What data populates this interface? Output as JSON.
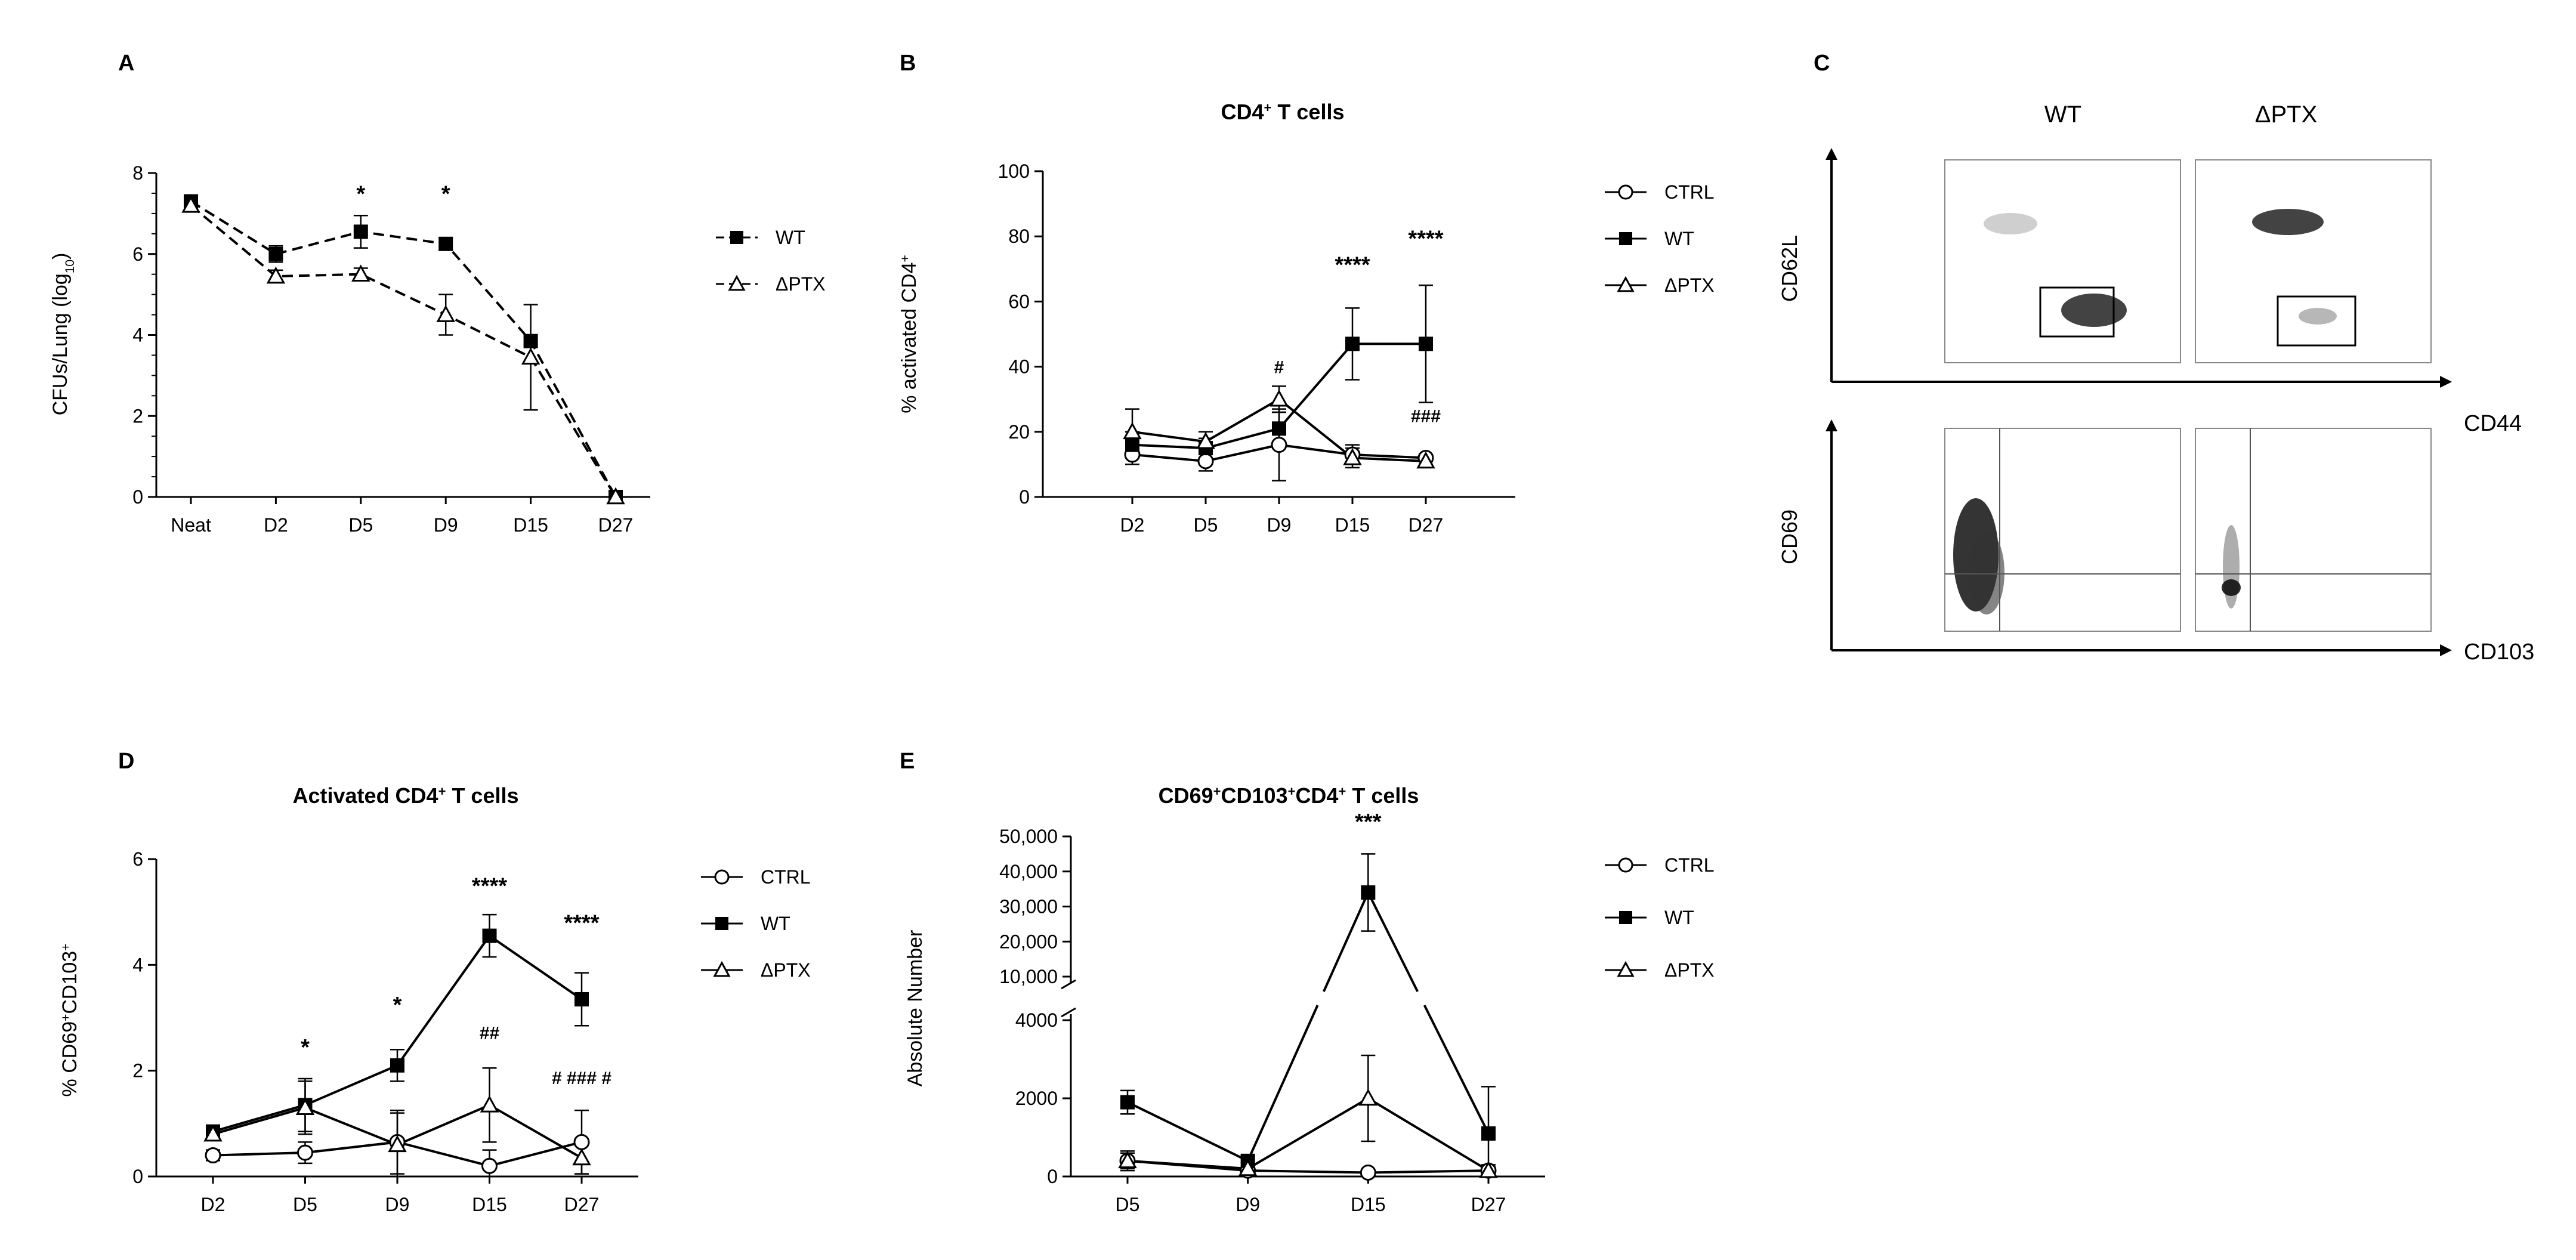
{
  "chart_data": [
    {
      "panel": "A",
      "type": "line",
      "title": "",
      "xlabel": "",
      "ylabel": "CFUs/Lung (log",
      "ylabel_sub": "10",
      "ylabel_end": ")",
      "ylim": [
        0,
        8
      ],
      "yticks": [
        0,
        2,
        4,
        6,
        8
      ],
      "categories": [
        "Neat",
        "D2",
        "D5",
        "D9",
        "D15",
        "D27"
      ],
      "series": [
        {
          "name": "WT",
          "marker": "square-filled",
          "dash": true,
          "values": [
            7.3,
            6.0,
            6.55,
            6.25,
            3.85,
            0.0
          ],
          "err": [
            0.1,
            0.2,
            0.4,
            0.15,
            0.1,
            0
          ]
        },
        {
          "name": "ΔPTX",
          "marker": "triangle-open",
          "dash": true,
          "values": [
            7.2,
            5.45,
            5.5,
            4.5,
            3.45,
            0.0
          ],
          "err": [
            0.1,
            0.15,
            0.15,
            0.5,
            1.3,
            0
          ]
        }
      ],
      "annotations": [
        {
          "category": "D5",
          "y": 7.3,
          "text": "*"
        },
        {
          "category": "D9",
          "y": 7.3,
          "text": "*"
        }
      ]
    },
    {
      "panel": "B",
      "type": "line",
      "title": "CD4",
      "title_sup": "+",
      "title_end": " T cells",
      "ylabel": "% activated CD4",
      "ylabel_sup": "+",
      "ylim": [
        0,
        100
      ],
      "yticks": [
        0,
        20,
        40,
        60,
        80,
        100
      ],
      "categories": [
        "D2",
        "D5",
        "D9",
        "D15",
        "D27"
      ],
      "series": [
        {
          "name": "CTRL",
          "marker": "circle-open",
          "values": [
            13,
            11,
            16,
            13,
            12
          ],
          "err": [
            3,
            3,
            11,
            3,
            1
          ]
        },
        {
          "name": "WT",
          "marker": "square-filled",
          "values": [
            16,
            15,
            21,
            47,
            47
          ],
          "err": [
            4,
            3,
            5,
            11,
            18
          ]
        },
        {
          "name": "ΔPTX",
          "marker": "triangle-open",
          "values": [
            20,
            17,
            30,
            12,
            11
          ],
          "err": [
            7,
            3,
            4,
            3,
            1
          ]
        }
      ],
      "annotations": [
        {
          "category": "D9",
          "y": 38,
          "text": "#"
        },
        {
          "category": "D15",
          "y": 69,
          "text": "****"
        },
        {
          "category": "D27",
          "y": 77,
          "text": "****"
        },
        {
          "category": "D27",
          "y": 23,
          "text": "###"
        }
      ]
    },
    {
      "panel": "D",
      "type": "line",
      "title": "Activated CD4",
      "title_sup": "+",
      "title_end": " T cells",
      "ylabel": "% CD69",
      "ylabel_sup1": "+",
      "ylabel_mid": "CD103",
      "ylabel_sup2": "+",
      "ylim": [
        0,
        6
      ],
      "yticks": [
        0,
        2,
        4,
        6
      ],
      "categories": [
        "D2",
        "D5",
        "D9",
        "D15",
        "D27"
      ],
      "series": [
        {
          "name": "CTRL",
          "marker": "circle-open",
          "values": [
            0.4,
            0.45,
            0.65,
            0.2,
            0.65
          ],
          "err": [
            0.1,
            0.2,
            0.6,
            0.3,
            0.6
          ]
        },
        {
          "name": "WT",
          "marker": "square-filled",
          "values": [
            0.85,
            1.35,
            2.1,
            4.55,
            3.35
          ],
          "err": [
            0.1,
            0.5,
            0.3,
            0.4,
            0.5
          ]
        },
        {
          "name": "ΔPTX",
          "marker": "triangle-open",
          "values": [
            0.8,
            1.3,
            0.6,
            1.35,
            0.35
          ],
          "err": [
            0.1,
            0.5,
            0.6,
            0.7,
            0.3
          ]
        }
      ],
      "annotations": [
        {
          "category": "D5",
          "y": 2.3,
          "text": "*"
        },
        {
          "category": "D9",
          "y": 3.1,
          "text": "*"
        },
        {
          "category": "D15",
          "y": 2.6,
          "text": "##"
        },
        {
          "category": "D15",
          "y": 5.35,
          "text": "****"
        },
        {
          "category": "D27",
          "y": 4.65,
          "text": "****"
        },
        {
          "category": "D27",
          "y": 1.75,
          "text": "# ### #"
        }
      ]
    },
    {
      "panel": "E",
      "type": "line",
      "title": "CD69",
      "title_sup1": "+",
      "title_mid": "CD103",
      "title_sup2": "+",
      "title_mid2": "CD4",
      "title_sup3": "+",
      "title_end": "  T cells",
      "ylabel": "Absolute Number",
      "y_axis_break": true,
      "ylim_lower": [
        0,
        4000
      ],
      "ylim_upper": [
        10000,
        50000
      ],
      "yticks_lower": [
        "0",
        "2000",
        "4000"
      ],
      "yticks_upper": [
        "10,000",
        "20,000",
        "30,000",
        "40,000",
        "50,000"
      ],
      "categories": [
        "D5",
        "D9",
        "D15",
        "D27"
      ],
      "series": [
        {
          "name": "CTRL",
          "marker": "circle-open",
          "values": [
            400,
            150,
            100,
            150
          ],
          "err": [
            250,
            100,
            50,
            100
          ]
        },
        {
          "name": "WT",
          "marker": "square-filled",
          "values": [
            1900,
            400,
            34000,
            1100
          ],
          "err": [
            300,
            150,
            11000,
            1200
          ]
        },
        {
          "name": "ΔPTX",
          "marker": "triangle-open",
          "values": [
            400,
            200,
            2000,
            150
          ],
          "err": [
            200,
            150,
            1100,
            150
          ]
        }
      ],
      "annotations": [
        {
          "category": "D15",
          "text": "***"
        }
      ]
    }
  ],
  "panel_labels": {
    "A": "A",
    "B": "B",
    "C": "C",
    "D": "D",
    "E": "E"
  },
  "flow_panel": {
    "column_headers": [
      "WT",
      "ΔPTX"
    ],
    "top_y_label": "CD62L",
    "top_x_label": "CD44",
    "bottom_y_label": "CD69",
    "bottom_x_label": "CD103"
  }
}
